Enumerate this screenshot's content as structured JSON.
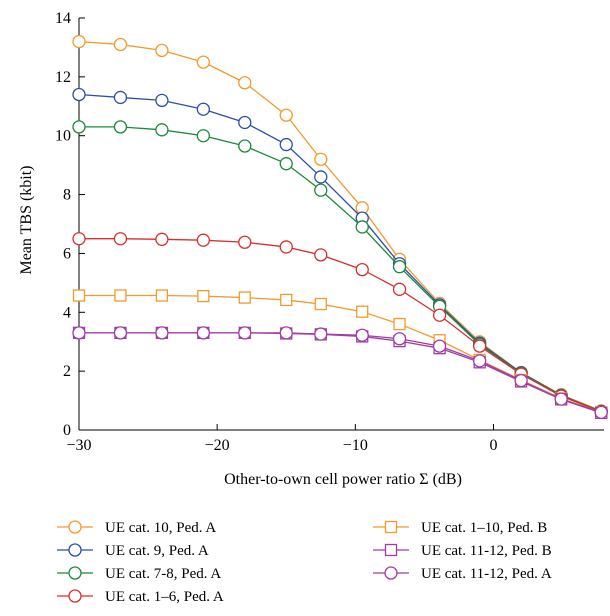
{
  "chart_data": {
    "type": "line",
    "title": "",
    "xlabel": "Other-to-own cell power ratio Σ (dB)",
    "ylabel": "Mean TBS (kbit)",
    "xlim": [
      -30,
      8
    ],
    "ylim": [
      0,
      14
    ],
    "xticks": [
      -30,
      -20,
      -10,
      0
    ],
    "yticks": [
      0,
      2,
      4,
      6,
      8,
      10,
      12,
      14
    ],
    "xtick_labels": [
      "−30",
      "−20",
      "−10",
      "0"
    ],
    "ytick_labels": [
      "0",
      "2",
      "4",
      "6",
      "8",
      "10",
      "12",
      "14"
    ],
    "grid": false,
    "legend_position": "bottom",
    "x": [
      -30,
      -27,
      -24,
      -21,
      -18,
      -15,
      -12.5,
      -9.5,
      -6.8,
      -3.9,
      -1,
      2,
      4.9,
      7.8
    ],
    "series": [
      {
        "name": "UE cat. 10, Ped. A",
        "color": "#f39a2b",
        "marker": "circle",
        "values": [
          13.2,
          13.1,
          12.9,
          12.5,
          11.8,
          10.7,
          9.2,
          7.55,
          5.8,
          4.3,
          3.0,
          1.95,
          1.2,
          0.65
        ]
      },
      {
        "name": "UE cat. 9, Ped. A",
        "color": "#2b4fa8",
        "marker": "circle",
        "values": [
          11.4,
          11.3,
          11.2,
          10.9,
          10.45,
          9.7,
          8.6,
          7.2,
          5.65,
          4.25,
          2.95,
          1.95,
          1.18,
          0.63
        ]
      },
      {
        "name": "UE cat. 7-8, Ped. A",
        "color": "#1a8a3a",
        "marker": "circle",
        "values": [
          10.3,
          10.3,
          10.2,
          10.0,
          9.65,
          9.05,
          8.15,
          6.9,
          5.55,
          4.2,
          2.9,
          1.93,
          1.17,
          0.63
        ]
      },
      {
        "name": "UE cat. 1–6, Ped. A",
        "color": "#d92e2e",
        "marker": "circle",
        "values": [
          6.5,
          6.5,
          6.48,
          6.45,
          6.38,
          6.22,
          5.95,
          5.45,
          4.78,
          3.9,
          2.85,
          1.9,
          1.15,
          0.62
        ]
      },
      {
        "name": "UE cat. 1–10, Ped. B",
        "color": "#f39a2b",
        "marker": "square",
        "values": [
          4.57,
          4.57,
          4.57,
          4.55,
          4.5,
          4.42,
          4.28,
          4.02,
          3.6,
          3.05,
          2.38,
          1.7,
          1.07,
          0.6
        ]
      },
      {
        "name": "UE cat. 11-12, Ped. B",
        "color": "#a23aa8",
        "marker": "square",
        "values": [
          3.3,
          3.3,
          3.3,
          3.3,
          3.3,
          3.28,
          3.25,
          3.18,
          3.02,
          2.78,
          2.3,
          1.65,
          1.04,
          0.58
        ]
      },
      {
        "name": "UE cat. 11-12, Ped. A",
        "color": "#a23aa8",
        "marker": "circle",
        "values": [
          3.3,
          3.3,
          3.3,
          3.3,
          3.3,
          3.3,
          3.26,
          3.22,
          3.1,
          2.85,
          2.35,
          1.68,
          1.05,
          0.6
        ]
      }
    ]
  }
}
